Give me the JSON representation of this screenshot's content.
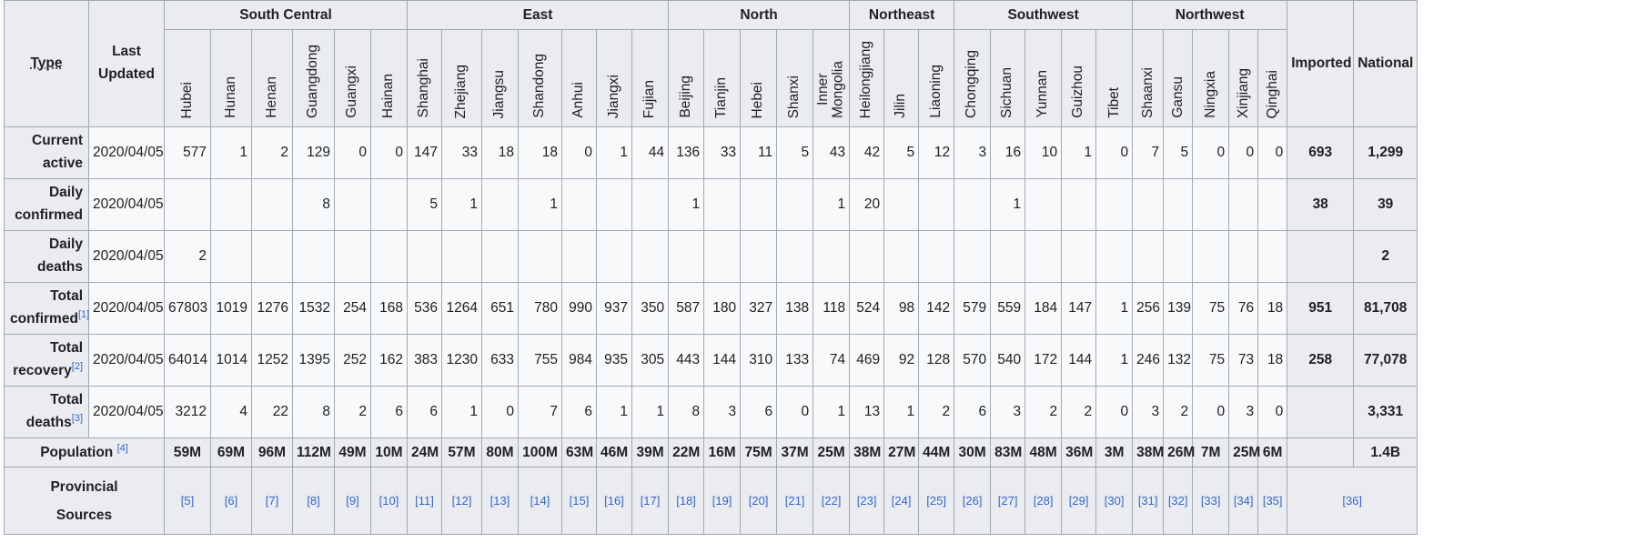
{
  "header": {
    "type_label": "Type",
    "last_updated_label": "Last Updated",
    "imported_label": "Imported",
    "national_label": "National",
    "regions": [
      {
        "name": "South Central",
        "span": 6
      },
      {
        "name": "East",
        "span": 7
      },
      {
        "name": "North",
        "span": 5
      },
      {
        "name": "Northeast",
        "span": 3
      },
      {
        "name": "Southwest",
        "span": 5
      },
      {
        "name": "Northwest",
        "span": 5
      }
    ],
    "provinces": [
      "Hubei",
      "Hunan",
      "Henan",
      "Guangdong",
      "Guangxi",
      "Hainan",
      "Shanghai",
      "Zhejiang",
      "Jiangsu",
      "Shandong",
      "Anhui",
      "Jiangxi",
      "Fujian",
      "Beijing",
      "Tianjin",
      "Hebei",
      "Shanxi",
      "Inner Mongolia",
      "Heilongjiang",
      "Jilin",
      "Liaoning",
      "Chongqing",
      "Sichuan",
      "Yunnan",
      "Guizhou",
      "Tibet",
      "Shaanxi",
      "Gansu",
      "Ningxia",
      "Xinjiang",
      "Qinghai"
    ]
  },
  "rows": [
    {
      "label": [
        "Current",
        "active"
      ],
      "sup": "",
      "date": "2020/04/05",
      "values": [
        "577",
        "1",
        "2",
        "129",
        "0",
        "0",
        "147",
        "33",
        "18",
        "18",
        "0",
        "1",
        "44",
        "136",
        "33",
        "11",
        "5",
        "43",
        "42",
        "5",
        "12",
        "3",
        "16",
        "10",
        "1",
        "0",
        "7",
        "5",
        "0",
        "0",
        "0"
      ],
      "imported": "693",
      "national": "1,299"
    },
    {
      "label": [
        "Daily",
        "confirmed"
      ],
      "sup": "",
      "date": "2020/04/05",
      "values": [
        "",
        "",
        "",
        "8",
        "",
        "",
        "5",
        "1",
        "",
        "1",
        "",
        "",
        "",
        "1",
        "",
        "",
        "",
        "1",
        "20",
        "",
        "",
        "",
        "1",
        "",
        "",
        "",
        "",
        "",
        "",
        "",
        ""
      ],
      "imported": "38",
      "national": "39"
    },
    {
      "label": [
        "Daily",
        "deaths"
      ],
      "sup": "",
      "date": "2020/04/05",
      "values": [
        "2",
        "",
        "",
        "",
        "",
        "",
        "",
        "",
        "",
        "",
        "",
        "",
        "",
        "",
        "",
        "",
        "",
        "",
        "",
        "",
        "",
        "",
        "",
        "",
        "",
        "",
        "",
        "",
        "",
        "",
        ""
      ],
      "imported": "",
      "national": "2"
    },
    {
      "label": [
        "Total",
        "confirmed"
      ],
      "sup": "[1]",
      "date": "2020/04/05",
      "values": [
        "67803",
        "1019",
        "1276",
        "1532",
        "254",
        "168",
        "536",
        "1264",
        "651",
        "780",
        "990",
        "937",
        "350",
        "587",
        "180",
        "327",
        "138",
        "118",
        "524",
        "98",
        "142",
        "579",
        "559",
        "184",
        "147",
        "1",
        "256",
        "139",
        "75",
        "76",
        "18"
      ],
      "imported": "951",
      "national": "81,708"
    },
    {
      "label": [
        "Total",
        "recovery"
      ],
      "sup": "[2]",
      "date": "2020/04/05",
      "values": [
        "64014",
        "1014",
        "1252",
        "1395",
        "252",
        "162",
        "383",
        "1230",
        "633",
        "755",
        "984",
        "935",
        "305",
        "443",
        "144",
        "310",
        "133",
        "74",
        "469",
        "92",
        "128",
        "570",
        "540",
        "172",
        "144",
        "1",
        "246",
        "132",
        "75",
        "73",
        "18"
      ],
      "imported": "258",
      "national": "77,078"
    },
    {
      "label": [
        "Total",
        "deaths"
      ],
      "sup": "[3]",
      "date": "2020/04/05",
      "values": [
        "3212",
        "4",
        "22",
        "8",
        "2",
        "6",
        "6",
        "1",
        "0",
        "7",
        "6",
        "1",
        "1",
        "8",
        "3",
        "6",
        "0",
        "1",
        "13",
        "1",
        "2",
        "6",
        "3",
        "2",
        "2",
        "0",
        "3",
        "2",
        "0",
        "3",
        "0"
      ],
      "imported": "",
      "national": "3,331"
    }
  ],
  "population": {
    "label": "Population ",
    "sup": "[4]",
    "values": [
      "59M",
      "69M",
      "96M",
      "112M",
      "49M",
      "10M",
      "24M",
      "57M",
      "80M",
      "100M",
      "63M",
      "46M",
      "39M",
      "22M",
      "16M",
      "75M",
      "37M",
      "25M",
      "38M",
      "27M",
      "44M",
      "30M",
      "83M",
      "48M",
      "36M",
      "3M",
      "38M",
      "26M",
      "7M",
      "25M",
      "6M"
    ],
    "imported": "",
    "national": "1.4B"
  },
  "sources": {
    "label": [
      "Provincial",
      "Sources"
    ],
    "refs": [
      "[5]",
      "[6]",
      "[7]",
      "[8]",
      "[9]",
      "[10]",
      "[11]",
      "[12]",
      "[13]",
      "[14]",
      "[15]",
      "[16]",
      "[17]",
      "[18]",
      "[19]",
      "[20]",
      "[21]",
      "[22]",
      "[23]",
      "[24]",
      "[25]",
      "[26]",
      "[27]",
      "[28]",
      "[29]",
      "[30]",
      "[31]",
      "[32]",
      "[33]",
      "[34]",
      "[35]"
    ],
    "national_ref": "[36]"
  },
  "colors": {
    "header_bg": "#eaecf0",
    "cell_bg": "#f8f9fa",
    "border": "#a2a9b1",
    "link": "#3366cc"
  }
}
